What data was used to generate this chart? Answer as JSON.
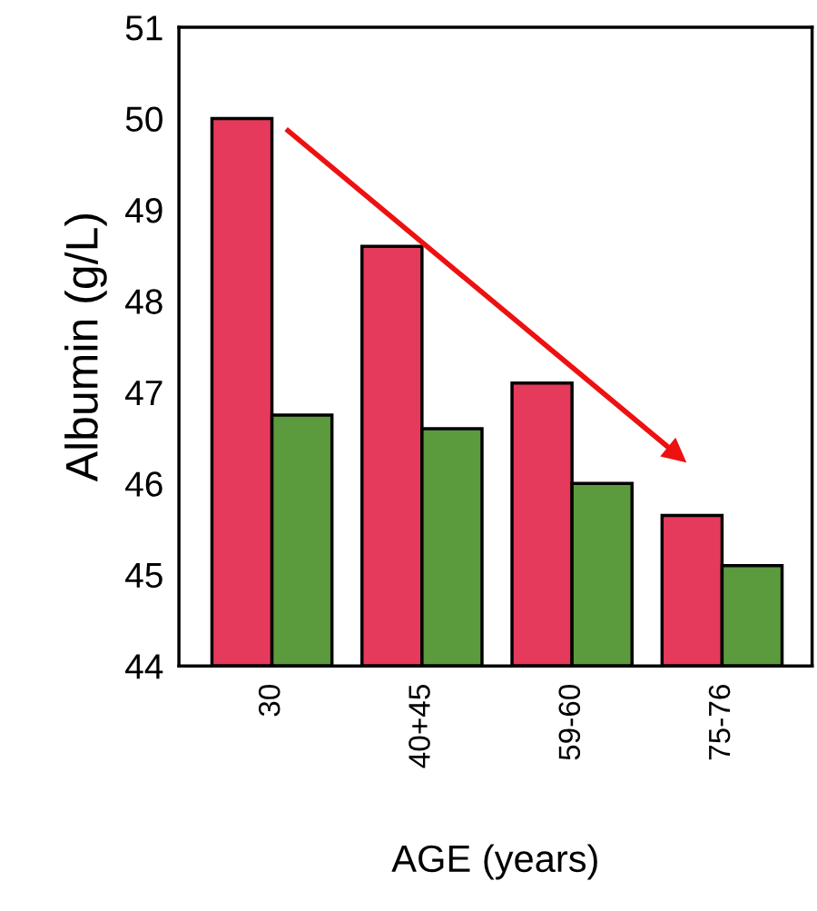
{
  "chart_data": {
    "type": "bar",
    "xlabel": "AGE (years)",
    "ylabel": "Albumin (g/L)",
    "categories": [
      "30",
      "40+45",
      "59-60",
      "75-76"
    ],
    "series": [
      {
        "color": "#e53a5c",
        "values": [
          50.0,
          48.6,
          47.1,
          45.65
        ]
      },
      {
        "color": "#5c9a3e",
        "values": [
          46.75,
          46.6,
          46.0,
          45.1
        ]
      }
    ],
    "ylim": [
      44,
      51
    ],
    "yticks": [
      44,
      45,
      46,
      47,
      48,
      49,
      50,
      51
    ],
    "grid": false,
    "legend": false
  }
}
